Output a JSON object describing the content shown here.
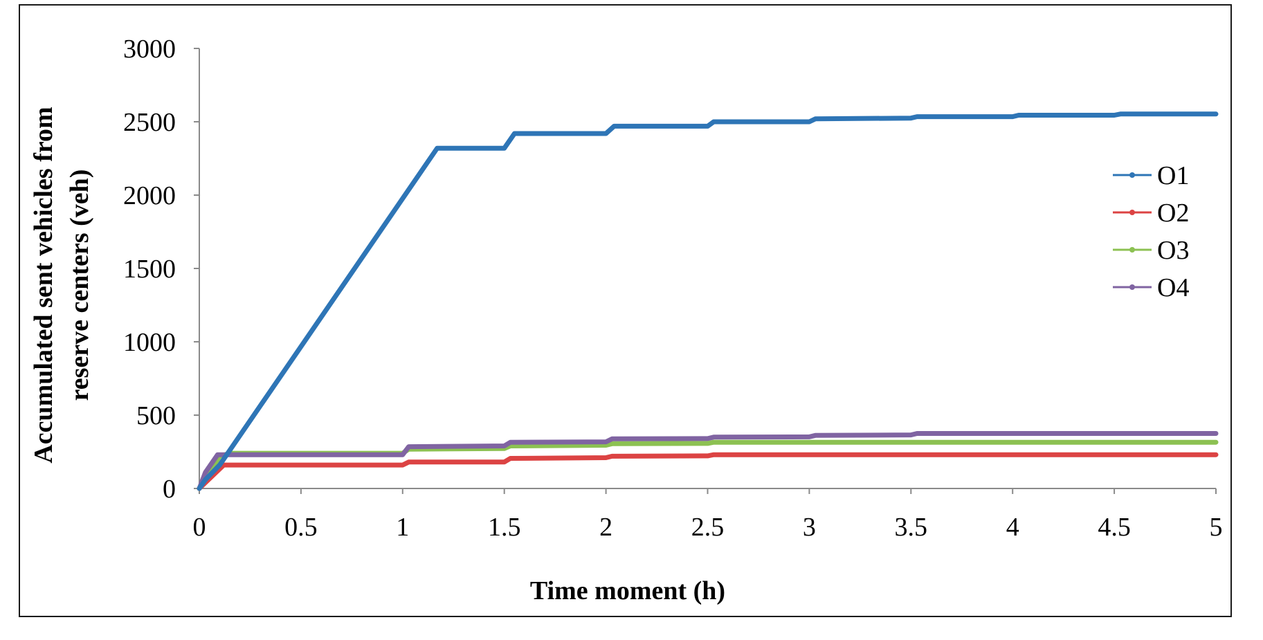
{
  "chart_data": {
    "type": "line",
    "title": "",
    "xlabel": "Time moment (h)",
    "ylabel_lines": [
      "Accumulated sent vehicles  from",
      "reserve centers  (veh)"
    ],
    "xlim": [
      0,
      5
    ],
    "ylim": [
      0,
      3000
    ],
    "x_ticks": [
      0,
      0.5,
      1,
      1.5,
      2,
      2.5,
      3,
      3.5,
      4,
      4.5,
      5
    ],
    "x_tick_labels": [
      "0",
      "0.5",
      "1",
      "1.5",
      "2",
      "2.5",
      "3",
      "3.5",
      "4",
      "4.5",
      "5"
    ],
    "y_ticks": [
      0,
      500,
      1000,
      1500,
      2000,
      2500,
      3000
    ],
    "y_tick_labels": [
      "0",
      "500",
      "1000",
      "1500",
      "2000",
      "2500",
      "3000"
    ],
    "grid": false,
    "legend_position": "right",
    "series": [
      {
        "name": "O1",
        "color": "#2e75b6",
        "points": [
          [
            0,
            0
          ],
          [
            0.03,
            60
          ],
          [
            0.1,
            160
          ],
          [
            1.17,
            2320
          ],
          [
            1.5,
            2320
          ],
          [
            1.55,
            2420
          ],
          [
            2.0,
            2420
          ],
          [
            2.04,
            2470
          ],
          [
            2.5,
            2470
          ],
          [
            2.53,
            2500
          ],
          [
            3.0,
            2500
          ],
          [
            3.03,
            2520
          ],
          [
            3.5,
            2525
          ],
          [
            3.53,
            2535
          ],
          [
            4.0,
            2535
          ],
          [
            4.03,
            2545
          ],
          [
            4.5,
            2545
          ],
          [
            4.53,
            2553
          ],
          [
            5.0,
            2553
          ]
        ]
      },
      {
        "name": "O2",
        "color": "#dc4343",
        "points": [
          [
            0,
            0
          ],
          [
            0.12,
            160
          ],
          [
            1.0,
            160
          ],
          [
            1.03,
            180
          ],
          [
            1.5,
            180
          ],
          [
            1.53,
            205
          ],
          [
            2.0,
            210
          ],
          [
            2.03,
            220
          ],
          [
            2.5,
            222
          ],
          [
            2.53,
            230
          ],
          [
            5.0,
            230
          ]
        ]
      },
      {
        "name": "O3",
        "color": "#8cc152",
        "points": [
          [
            0,
            0
          ],
          [
            0.1,
            220
          ],
          [
            0.15,
            240
          ],
          [
            1.0,
            240
          ],
          [
            1.03,
            268
          ],
          [
            1.5,
            272
          ],
          [
            1.53,
            290
          ],
          [
            2.0,
            295
          ],
          [
            2.03,
            305
          ],
          [
            2.5,
            307
          ],
          [
            2.53,
            315
          ],
          [
            5.0,
            315
          ]
        ]
      },
      {
        "name": "O4",
        "color": "#8064a2",
        "points": [
          [
            0,
            0
          ],
          [
            0.03,
            110
          ],
          [
            0.09,
            230
          ],
          [
            1.0,
            230
          ],
          [
            1.03,
            285
          ],
          [
            1.5,
            290
          ],
          [
            1.53,
            315
          ],
          [
            2.0,
            318
          ],
          [
            2.03,
            338
          ],
          [
            2.5,
            340
          ],
          [
            2.53,
            350
          ],
          [
            3.0,
            352
          ],
          [
            3.03,
            362
          ],
          [
            3.5,
            365
          ],
          [
            3.53,
            375
          ],
          [
            5.0,
            375
          ]
        ]
      }
    ]
  }
}
